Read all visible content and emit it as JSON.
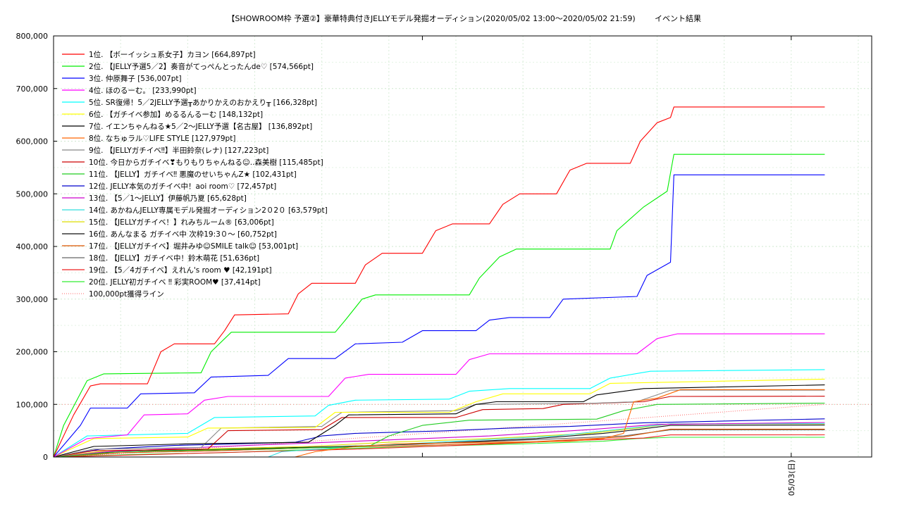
{
  "chart_data": {
    "type": "line",
    "title": "【SHOWROOM枠 予選②】豪華特典付きJELLYモデル発掘オーディション(2020/05/02 13:00～2020/05/02 21:59)",
    "subtitle": "イベント結果",
    "xlabel": "",
    "ylabel": "",
    "ylim": [
      0,
      800000
    ],
    "y_ticks": [
      "0",
      "100,000",
      "200,000",
      "300,000",
      "400,000",
      "500,000",
      "600,000",
      "700,000",
      "800,000"
    ],
    "x_ticks": [
      {
        "label": "05/03(日)",
        "hour": 11
      }
    ],
    "x_unit": "hours since 2020/05/02 13:00",
    "xlim": [
      0,
      12.2
    ],
    "grid": true,
    "legend_position": "top-left",
    "reference_line": {
      "name": "100,000pt獲得ライン",
      "value": 100000,
      "color": "#ff6666"
    },
    "series": [
      {
        "name": "1位. 【ボーイッシュ系女子】カヨン [664,897pt]",
        "color": "#ff0000",
        "points": [
          [
            0,
            0
          ],
          [
            0.3,
            80000
          ],
          [
            0.55,
            135000
          ],
          [
            0.7,
            139000
          ],
          [
            1.4,
            139000
          ],
          [
            1.6,
            200000
          ],
          [
            1.8,
            215000
          ],
          [
            2.4,
            215000
          ],
          [
            2.55,
            240000
          ],
          [
            2.7,
            270000
          ],
          [
            3.5,
            272000
          ],
          [
            3.65,
            310000
          ],
          [
            3.85,
            330000
          ],
          [
            4.5,
            330000
          ],
          [
            4.65,
            365000
          ],
          [
            4.9,
            387000
          ],
          [
            5.5,
            387000
          ],
          [
            5.7,
            430000
          ],
          [
            5.95,
            443000
          ],
          [
            6.5,
            443000
          ],
          [
            6.7,
            480000
          ],
          [
            6.95,
            500000
          ],
          [
            7.5,
            500000
          ],
          [
            7.7,
            545000
          ],
          [
            7.95,
            558000
          ],
          [
            8.6,
            558000
          ],
          [
            8.75,
            600000
          ],
          [
            9.0,
            635000
          ],
          [
            9.2,
            645000
          ],
          [
            9.25,
            665000
          ],
          [
            11.5,
            665000
          ]
        ]
      },
      {
        "name": "2位. 【JELLY予選5／2】奏音がてっぺんとったんde♡ [574,566pt]",
        "color": "#00ee00",
        "points": [
          [
            0,
            0
          ],
          [
            0.15,
            60000
          ],
          [
            0.5,
            145000
          ],
          [
            0.75,
            158000
          ],
          [
            2.2,
            160000
          ],
          [
            2.35,
            200000
          ],
          [
            2.65,
            237000
          ],
          [
            4.2,
            237000
          ],
          [
            4.35,
            260000
          ],
          [
            4.6,
            300000
          ],
          [
            4.8,
            308000
          ],
          [
            6.2,
            308000
          ],
          [
            6.35,
            340000
          ],
          [
            6.65,
            380000
          ],
          [
            6.9,
            395000
          ],
          [
            8.3,
            395000
          ],
          [
            8.4,
            430000
          ],
          [
            8.8,
            475000
          ],
          [
            9.15,
            505000
          ],
          [
            9.25,
            575000
          ],
          [
            11.5,
            575000
          ]
        ]
      },
      {
        "name": "3位. 仲原舞子 [536,007pt]",
        "color": "#0000ff",
        "points": [
          [
            0,
            0
          ],
          [
            0.4,
            60000
          ],
          [
            0.55,
            93000
          ],
          [
            1.1,
            93000
          ],
          [
            1.3,
            120000
          ],
          [
            2.1,
            122000
          ],
          [
            2.35,
            152000
          ],
          [
            3.2,
            155000
          ],
          [
            3.5,
            187000
          ],
          [
            4.2,
            187000
          ],
          [
            4.5,
            215000
          ],
          [
            5.2,
            218000
          ],
          [
            5.5,
            240000
          ],
          [
            6.3,
            240000
          ],
          [
            6.5,
            260000
          ],
          [
            6.8,
            265000
          ],
          [
            7.4,
            265000
          ],
          [
            7.6,
            300000
          ],
          [
            8.7,
            305000
          ],
          [
            8.85,
            345000
          ],
          [
            9.2,
            370000
          ],
          [
            9.25,
            536000
          ],
          [
            11.5,
            536000
          ]
        ]
      },
      {
        "name": "4位. ほのるーむ。 [233,990pt]",
        "color": "#ff00ff",
        "points": [
          [
            0,
            0
          ],
          [
            0.5,
            35000
          ],
          [
            1.1,
            42000
          ],
          [
            1.35,
            80000
          ],
          [
            2.0,
            82000
          ],
          [
            2.25,
            108000
          ],
          [
            2.6,
            115000
          ],
          [
            4.1,
            115000
          ],
          [
            4.35,
            150000
          ],
          [
            4.7,
            157000
          ],
          [
            6.0,
            157000
          ],
          [
            6.2,
            185000
          ],
          [
            6.5,
            196000
          ],
          [
            8.7,
            196000
          ],
          [
            9.0,
            225000
          ],
          [
            9.3,
            234000
          ],
          [
            11.5,
            234000
          ]
        ]
      },
      {
        "name": "5位. SR復帰！5／2JELLY予選╥あかりかえのおかえり╥ [166,328pt]",
        "color": "#00ffff",
        "points": [
          [
            0,
            0
          ],
          [
            0.5,
            40000
          ],
          [
            2.0,
            45000
          ],
          [
            2.4,
            75000
          ],
          [
            3.9,
            78000
          ],
          [
            4.1,
            98000
          ],
          [
            4.5,
            108000
          ],
          [
            5.9,
            110000
          ],
          [
            6.2,
            125000
          ],
          [
            6.8,
            130000
          ],
          [
            8.0,
            130000
          ],
          [
            8.3,
            150000
          ],
          [
            8.9,
            163000
          ],
          [
            11.5,
            166000
          ]
        ]
      },
      {
        "name": "6位. 【ガチイベ参加】めるるんるーむ [148,132pt]",
        "color": "#ffff00",
        "points": [
          [
            0,
            0
          ],
          [
            0.6,
            35000
          ],
          [
            2.0,
            38000
          ],
          [
            2.3,
            55000
          ],
          [
            3.9,
            56000
          ],
          [
            4.2,
            85000
          ],
          [
            5.9,
            85000
          ],
          [
            6.3,
            105000
          ],
          [
            6.7,
            120000
          ],
          [
            8.0,
            120000
          ],
          [
            8.3,
            140000
          ],
          [
            11.5,
            148000
          ]
        ]
      },
      {
        "name": "7位. イエンちゃんねる★5／2～JELLY予選【名古屋】 [136,892pt]",
        "color": "#000000",
        "points": [
          [
            0,
            0
          ],
          [
            0.6,
            20000
          ],
          [
            2.0,
            25000
          ],
          [
            3.8,
            28000
          ],
          [
            4.2,
            60000
          ],
          [
            4.4,
            80000
          ],
          [
            6.0,
            82000
          ],
          [
            6.3,
            100000
          ],
          [
            6.6,
            105000
          ],
          [
            7.9,
            105000
          ],
          [
            8.1,
            118000
          ],
          [
            8.8,
            130000
          ],
          [
            11.5,
            137000
          ]
        ]
      },
      {
        "name": "8位. なちゅラル♡LIFE STYLE [127,979pt]",
        "color": "#ff6600",
        "points": [
          [
            0,
            0
          ],
          [
            3.6,
            0
          ],
          [
            3.9,
            10000
          ],
          [
            4.5,
            20000
          ],
          [
            5.1,
            25000
          ],
          [
            6.5,
            28000
          ],
          [
            7.7,
            30000
          ],
          [
            8.2,
            35000
          ],
          [
            8.5,
            45000
          ],
          [
            8.65,
            105000
          ],
          [
            9.0,
            112000
          ],
          [
            9.35,
            128000
          ],
          [
            11.5,
            128000
          ]
        ]
      },
      {
        "name": "9位. 【JELLYガチイベ‼】半田鈴奈(レナ) [127,223pt]",
        "color": "#888888",
        "points": [
          [
            0,
            0
          ],
          [
            0.6,
            15000
          ],
          [
            2.2,
            18000
          ],
          [
            2.5,
            55000
          ],
          [
            4.0,
            58000
          ],
          [
            4.3,
            85000
          ],
          [
            6.0,
            88000
          ],
          [
            6.3,
            100000
          ],
          [
            8.0,
            102000
          ],
          [
            8.7,
            105000
          ],
          [
            9.2,
            127000
          ],
          [
            11.5,
            127000
          ]
        ]
      },
      {
        "name": "10位. 今日からガチイベ❣もりもりちゃんねる☺..森美樹 [115,485pt]",
        "color": "#cc0000",
        "points": [
          [
            0,
            0
          ],
          [
            0.6,
            12000
          ],
          [
            2.3,
            15000
          ],
          [
            2.6,
            50000
          ],
          [
            4.0,
            52000
          ],
          [
            4.3,
            75000
          ],
          [
            6.0,
            75000
          ],
          [
            6.4,
            90000
          ],
          [
            7.3,
            92000
          ],
          [
            7.6,
            100000
          ],
          [
            8.8,
            105000
          ],
          [
            9.2,
            115000
          ],
          [
            11.5,
            115500
          ]
        ]
      },
      {
        "name": "11位. 【JELLY】ガチイベ‼ 悪魔のせいちゃんZ★ [102,431pt]",
        "color": "#22cc22",
        "points": [
          [
            0,
            0
          ],
          [
            1.0,
            10000
          ],
          [
            3.0,
            15000
          ],
          [
            4.7,
            20000
          ],
          [
            5.0,
            40000
          ],
          [
            5.5,
            60000
          ],
          [
            6.2,
            70000
          ],
          [
            8.1,
            72000
          ],
          [
            8.5,
            88000
          ],
          [
            9.0,
            100000
          ],
          [
            11.5,
            102400
          ]
        ]
      },
      {
        "name": "12位. JELLY本気のガチイベ中！aoi room♡ [72,457pt]",
        "color": "#0000cc",
        "points": [
          [
            0,
            0
          ],
          [
            0.7,
            15000
          ],
          [
            1.8,
            22000
          ],
          [
            3.6,
            28000
          ],
          [
            4.0,
            40000
          ],
          [
            4.5,
            45000
          ],
          [
            5.9,
            50000
          ],
          [
            6.8,
            55000
          ],
          [
            7.7,
            58000
          ],
          [
            8.8,
            65000
          ],
          [
            11.5,
            72500
          ]
        ]
      },
      {
        "name": "13位. 【5／1～JELLY】伊藤帆乃夏 [65,628pt]",
        "color": "#cc00cc",
        "points": [
          [
            0,
            0
          ],
          [
            0.8,
            10000
          ],
          [
            2.5,
            20000
          ],
          [
            4.5,
            30000
          ],
          [
            6.5,
            40000
          ],
          [
            8.0,
            52000
          ],
          [
            9.0,
            62000
          ],
          [
            11.5,
            65600
          ]
        ]
      },
      {
        "name": "14位. あかねんJELLY専属モデル発掘オーディション2０2０ [63,579pt]",
        "color": "#33dddd",
        "points": [
          [
            0,
            0
          ],
          [
            3.2,
            0
          ],
          [
            3.4,
            10000
          ],
          [
            4.5,
            20000
          ],
          [
            6.0,
            30000
          ],
          [
            7.5,
            40000
          ],
          [
            8.6,
            55000
          ],
          [
            9.2,
            63000
          ],
          [
            11.5,
            63600
          ]
        ]
      },
      {
        "name": "15位. 【JELLYガチイベ！】れみちルーム® [63,006pt]",
        "color": "#dddd00",
        "points": [
          [
            0,
            0
          ],
          [
            0.8,
            12000
          ],
          [
            2.2,
            15000
          ],
          [
            3.8,
            20000
          ],
          [
            5.0,
            28000
          ],
          [
            6.5,
            35000
          ],
          [
            8.0,
            45000
          ],
          [
            8.7,
            55000
          ],
          [
            9.2,
            63000
          ],
          [
            11.5,
            63000
          ]
        ]
      },
      {
        "name": "16位. あんなまる ガチイベ中 次枠19:3０～ [60,752pt]",
        "color": "#111111",
        "points": [
          [
            0,
            0
          ],
          [
            0.9,
            10000
          ],
          [
            2.5,
            15000
          ],
          [
            4.3,
            20000
          ],
          [
            5.5,
            25000
          ],
          [
            7.2,
            35000
          ],
          [
            8.2,
            45000
          ],
          [
            8.7,
            52000
          ],
          [
            9.2,
            60000
          ],
          [
            11.5,
            60750
          ]
        ]
      },
      {
        "name": "17位. 【JELLYガチイベ】堀井みゆ☺SMILE talk☺ [53,001pt]",
        "color": "#dd5500",
        "points": [
          [
            0,
            0
          ],
          [
            1.0,
            8000
          ],
          [
            2.5,
            12000
          ],
          [
            4.0,
            18000
          ],
          [
            5.5,
            22000
          ],
          [
            7.0,
            28000
          ],
          [
            8.5,
            38000
          ],
          [
            9.2,
            53000
          ],
          [
            11.5,
            53000
          ]
        ]
      },
      {
        "name": "18位. 【JELLY】ガチイベ中！鈴木萌花 [51,636pt]",
        "color": "#666666",
        "points": [
          [
            0,
            0
          ],
          [
            1.0,
            8000
          ],
          [
            2.5,
            12000
          ],
          [
            4.0,
            18000
          ],
          [
            5.5,
            25000
          ],
          [
            7.0,
            32000
          ],
          [
            8.5,
            40000
          ],
          [
            9.2,
            51600
          ],
          [
            11.5,
            51600
          ]
        ]
      },
      {
        "name": "19位. 【5／4ガチイベ】えれん's room ♥ [42,191pt]",
        "color": "#ee2222",
        "points": [
          [
            0,
            0
          ],
          [
            1.5,
            5000
          ],
          [
            3.0,
            10000
          ],
          [
            4.5,
            15000
          ],
          [
            6.0,
            22000
          ],
          [
            7.5,
            30000
          ],
          [
            8.8,
            36000
          ],
          [
            9.2,
            42000
          ],
          [
            11.5,
            42200
          ]
        ]
      },
      {
        "name": "20位. JELLY初ガチイベ ‼ 彩実ROOM♥ [37,414pt]",
        "color": "#33ee33",
        "points": [
          [
            0,
            0
          ],
          [
            1.2,
            5000
          ],
          [
            2.5,
            8000
          ],
          [
            4.0,
            15000
          ],
          [
            5.5,
            20000
          ],
          [
            7.0,
            25000
          ],
          [
            8.2,
            30000
          ],
          [
            8.7,
            35000
          ],
          [
            9.2,
            37400
          ],
          [
            11.5,
            37400
          ]
        ]
      }
    ]
  }
}
